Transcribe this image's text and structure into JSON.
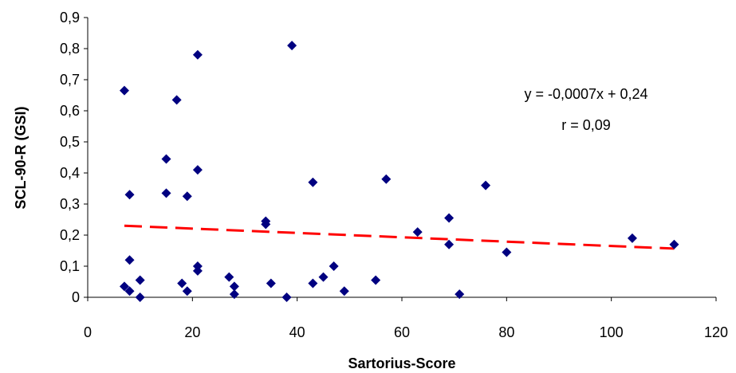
{
  "chart_data": {
    "type": "scatter",
    "title": "",
    "xlabel": "Sartorius-Score",
    "ylabel": "SCL-90-R (GSI)",
    "xlim": [
      0,
      120
    ],
    "ylim": [
      0,
      0.9
    ],
    "x_ticks": [
      "0",
      "20",
      "40",
      "60",
      "80",
      "100",
      "120"
    ],
    "y_ticks": [
      "0",
      "0,1",
      "0,2",
      "0,3",
      "0,4",
      "0,5",
      "0,6",
      "0,7",
      "0,8",
      "0,9"
    ],
    "grid": false,
    "legend": "none",
    "marker": "diamond",
    "marker_color": "#000080",
    "points": [
      [
        7,
        0.665
      ],
      [
        7,
        0.035
      ],
      [
        8,
        0.33
      ],
      [
        8,
        0.12
      ],
      [
        8,
        0.02
      ],
      [
        10,
        0.055
      ],
      [
        10,
        0
      ],
      [
        15,
        0.445
      ],
      [
        15,
        0.335
      ],
      [
        17,
        0.635
      ],
      [
        18,
        0.045
      ],
      [
        19,
        0.325
      ],
      [
        19,
        0.02
      ],
      [
        21,
        0.78
      ],
      [
        21,
        0.41
      ],
      [
        21,
        0.1
      ],
      [
        21,
        0.085
      ],
      [
        27,
        0.065
      ],
      [
        28,
        0.035
      ],
      [
        28,
        0.01
      ],
      [
        34,
        0.245
      ],
      [
        34,
        0.235
      ],
      [
        35,
        0.045
      ],
      [
        38,
        0
      ],
      [
        39,
        0.81
      ],
      [
        43,
        0.37
      ],
      [
        43,
        0.045
      ],
      [
        45,
        0.065
      ],
      [
        47,
        0.1
      ],
      [
        49,
        0.02
      ],
      [
        55,
        0.055
      ],
      [
        57,
        0.38
      ],
      [
        63,
        0.21
      ],
      [
        69,
        0.255
      ],
      [
        69,
        0.17
      ],
      [
        71,
        0.01
      ],
      [
        76,
        0.36
      ],
      [
        80,
        0.145
      ],
      [
        104,
        0.19
      ],
      [
        112,
        0.17
      ]
    ],
    "trendline": {
      "slope": -0.0007,
      "intercept": 0.235,
      "x_range": [
        7,
        112
      ],
      "color": "#ff0000",
      "style": "dashed"
    },
    "annotations": [
      "y = -0,0007x + 0,24",
      "r = 0,09"
    ]
  }
}
